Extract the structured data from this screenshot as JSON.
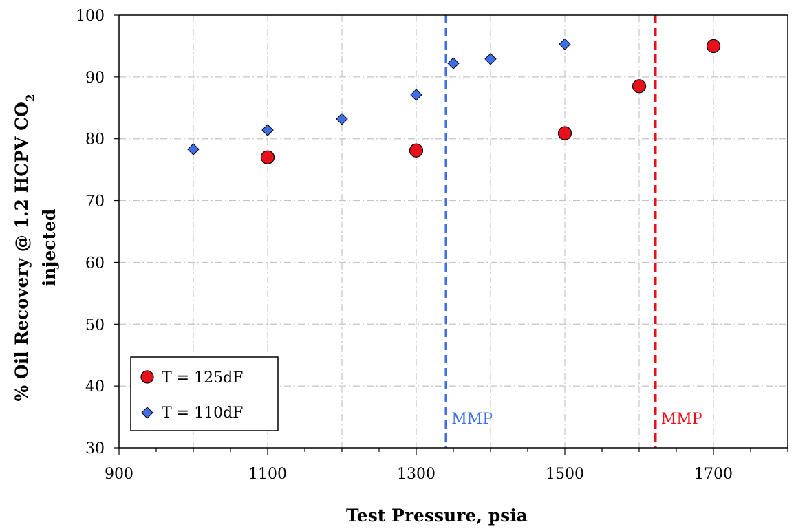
{
  "chart_data": {
    "type": "scatter",
    "xlabel": "Test Pressure, psia",
    "ylabel_line1": "% Oil Recovery @ 1.2 HCPV CO",
    "ylabel_subscript": "2",
    "ylabel_line2": "injected",
    "xlim": [
      900,
      1800
    ],
    "ylim": [
      30,
      100
    ],
    "xticks": [
      900,
      1100,
      1300,
      1500,
      1700
    ],
    "xtick_labels": [
      "900",
      "1100",
      "1300",
      "1500",
      "1700"
    ],
    "yticks": [
      30,
      40,
      50,
      60,
      70,
      80,
      90,
      100
    ],
    "ytick_labels": [
      "30",
      "40",
      "50",
      "60",
      "70",
      "80",
      "90",
      "100"
    ],
    "grid": true,
    "legend_position": "bottom-left",
    "series": [
      {
        "name": "T = 125dF",
        "marker": "circle",
        "color": "#e8101a",
        "x": [
          1100,
          1300,
          1500,
          1600,
          1700
        ],
        "y": [
          77.0,
          78.1,
          80.9,
          88.5,
          95.0
        ]
      },
      {
        "name": "T = 110dF",
        "marker": "diamond",
        "color": "#3f6fe8",
        "x": [
          1000,
          1100,
          1200,
          1300,
          1350,
          1400,
          1500
        ],
        "y": [
          78.3,
          81.4,
          83.2,
          87.1,
          92.2,
          92.9,
          95.3
        ]
      }
    ],
    "vlines": [
      {
        "x": 1340,
        "color": "#3f6fe8",
        "label": "MMP"
      },
      {
        "x": 1622,
        "color": "#e8101a",
        "label": "MMP"
      }
    ]
  }
}
